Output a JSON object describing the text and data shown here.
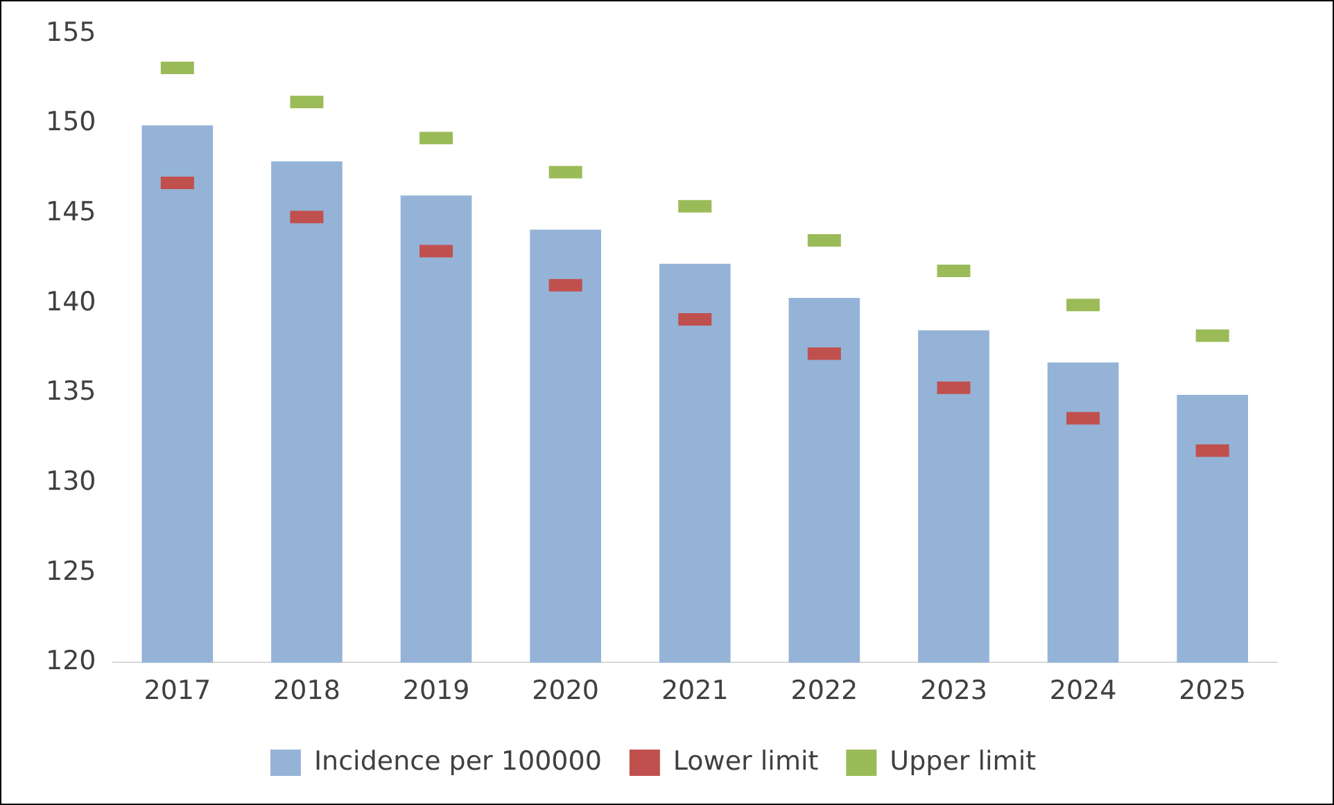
{
  "chart_data": {
    "type": "bar",
    "categories": [
      "2017",
      "2018",
      "2019",
      "2020",
      "2021",
      "2022",
      "2023",
      "2024",
      "2025"
    ],
    "series": [
      {
        "name": "Incidence per 100000",
        "color": "#95b3d7",
        "values": [
          149.9,
          147.9,
          146.0,
          144.1,
          142.2,
          140.3,
          138.5,
          136.7,
          134.9
        ]
      },
      {
        "name": "Lower limit",
        "type": "scatter",
        "color": "#c0504d",
        "values": [
          146.7,
          144.8,
          142.9,
          141.0,
          139.1,
          137.2,
          135.3,
          133.6,
          131.8
        ]
      },
      {
        "name": "Upper limit",
        "type": "scatter",
        "color": "#9bbb59",
        "values": [
          153.1,
          151.2,
          149.2,
          147.3,
          145.4,
          143.5,
          141.8,
          139.9,
          138.2
        ]
      }
    ],
    "ylim": [
      120,
      155
    ],
    "yticks": [
      120,
      125,
      130,
      135,
      140,
      145,
      150,
      155
    ],
    "grid": false,
    "legend": "bottom"
  }
}
